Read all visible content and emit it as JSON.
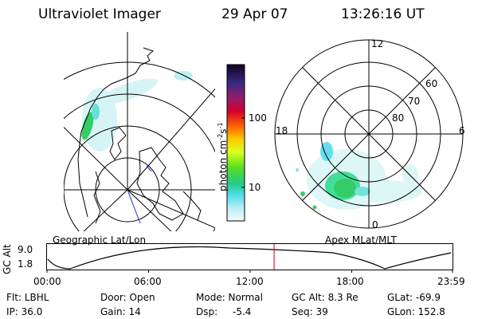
{
  "header": {
    "instrument": "Ultraviolet Imager",
    "date": "29 Apr 07",
    "time": "13:26:16 UT"
  },
  "colorbar": {
    "unit_label": "photon cm",
    "unit_exp1": "-2",
    "unit_s": "s",
    "unit_exp2": "-1",
    "ticks": [
      "100",
      "10"
    ]
  },
  "left_map": {
    "label": "Geographic Lat/Lon"
  },
  "right_map": {
    "label": "Apex MLat/MLT",
    "mlt_labels": [
      "12",
      "18",
      "6",
      "0"
    ],
    "lat_labels": [
      "60",
      "70",
      "80"
    ]
  },
  "timeline": {
    "axis_label": "GC Alt",
    "y_ticks": [
      "9.0",
      "1.8"
    ],
    "x_ticks": [
      "00:00",
      "06:00",
      "12:00",
      "18:00",
      "23:59"
    ],
    "current_time_fraction": 0.56
  },
  "status": {
    "flt": "Flt: LBHL",
    "ip": "IP: 36.0",
    "door": "Door: Open",
    "gain": "Gain: 14",
    "mode": "Mode: Normal",
    "dsp_label": "Dsp:",
    "dsp_value": "-5.4",
    "gc_alt": "GC Alt: 8.3 Re",
    "seq": "Seq: 39",
    "glat": "GLat: -69.9",
    "glon": "GLon: 152.8"
  },
  "colors": {
    "current_time_marker": "#cc0000",
    "aurora_dim": "#bfeef0",
    "aurora_mid": "#66e0d8",
    "aurora_bright": "#33cc66"
  }
}
